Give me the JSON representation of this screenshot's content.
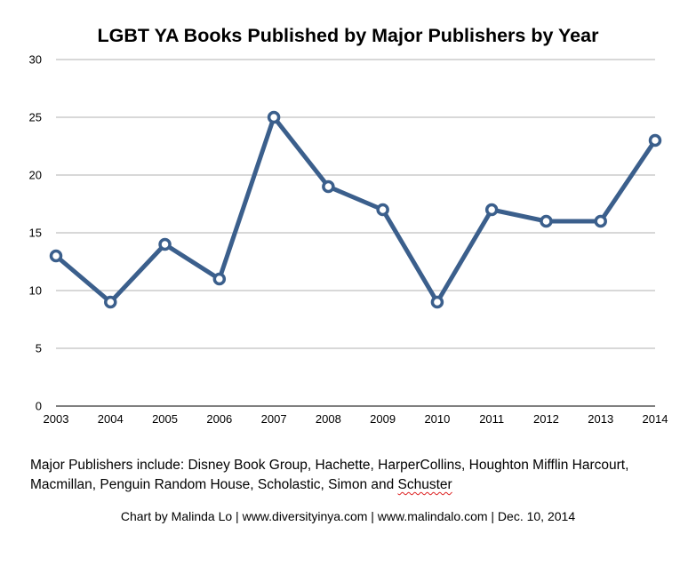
{
  "chart_data": {
    "type": "line",
    "title": "LGBT YA Books Published by Major Publishers by Year",
    "xlabel": "",
    "ylabel": "",
    "x": [
      "2003",
      "2004",
      "2005",
      "2006",
      "2007",
      "2008",
      "2009",
      "2010",
      "2011",
      "2012",
      "2013",
      "2014"
    ],
    "series": [
      {
        "values": [
          13,
          9,
          14,
          11,
          25,
          19,
          17,
          9,
          17,
          16,
          16,
          23
        ]
      }
    ],
    "ylim": [
      0,
      30
    ],
    "yticks": [
      0,
      5,
      10,
      15,
      20,
      25,
      30
    ],
    "grid": true,
    "line_color": "#3b5f8c",
    "marker_fill": "#ffffff"
  },
  "note": {
    "line1": "Major Publishers include: Disney Book Group, Hachette, HarperCollins, Houghton Mifflin Harcourt,",
    "line2_start": "Macmillan, Penguin Random House, Scholastic, Simon and ",
    "line2_squiggle": "Schuster"
  },
  "credit": "Chart by Malinda Lo | www.diversityinya.com | www.malindalo.com | Dec. 10, 2014"
}
